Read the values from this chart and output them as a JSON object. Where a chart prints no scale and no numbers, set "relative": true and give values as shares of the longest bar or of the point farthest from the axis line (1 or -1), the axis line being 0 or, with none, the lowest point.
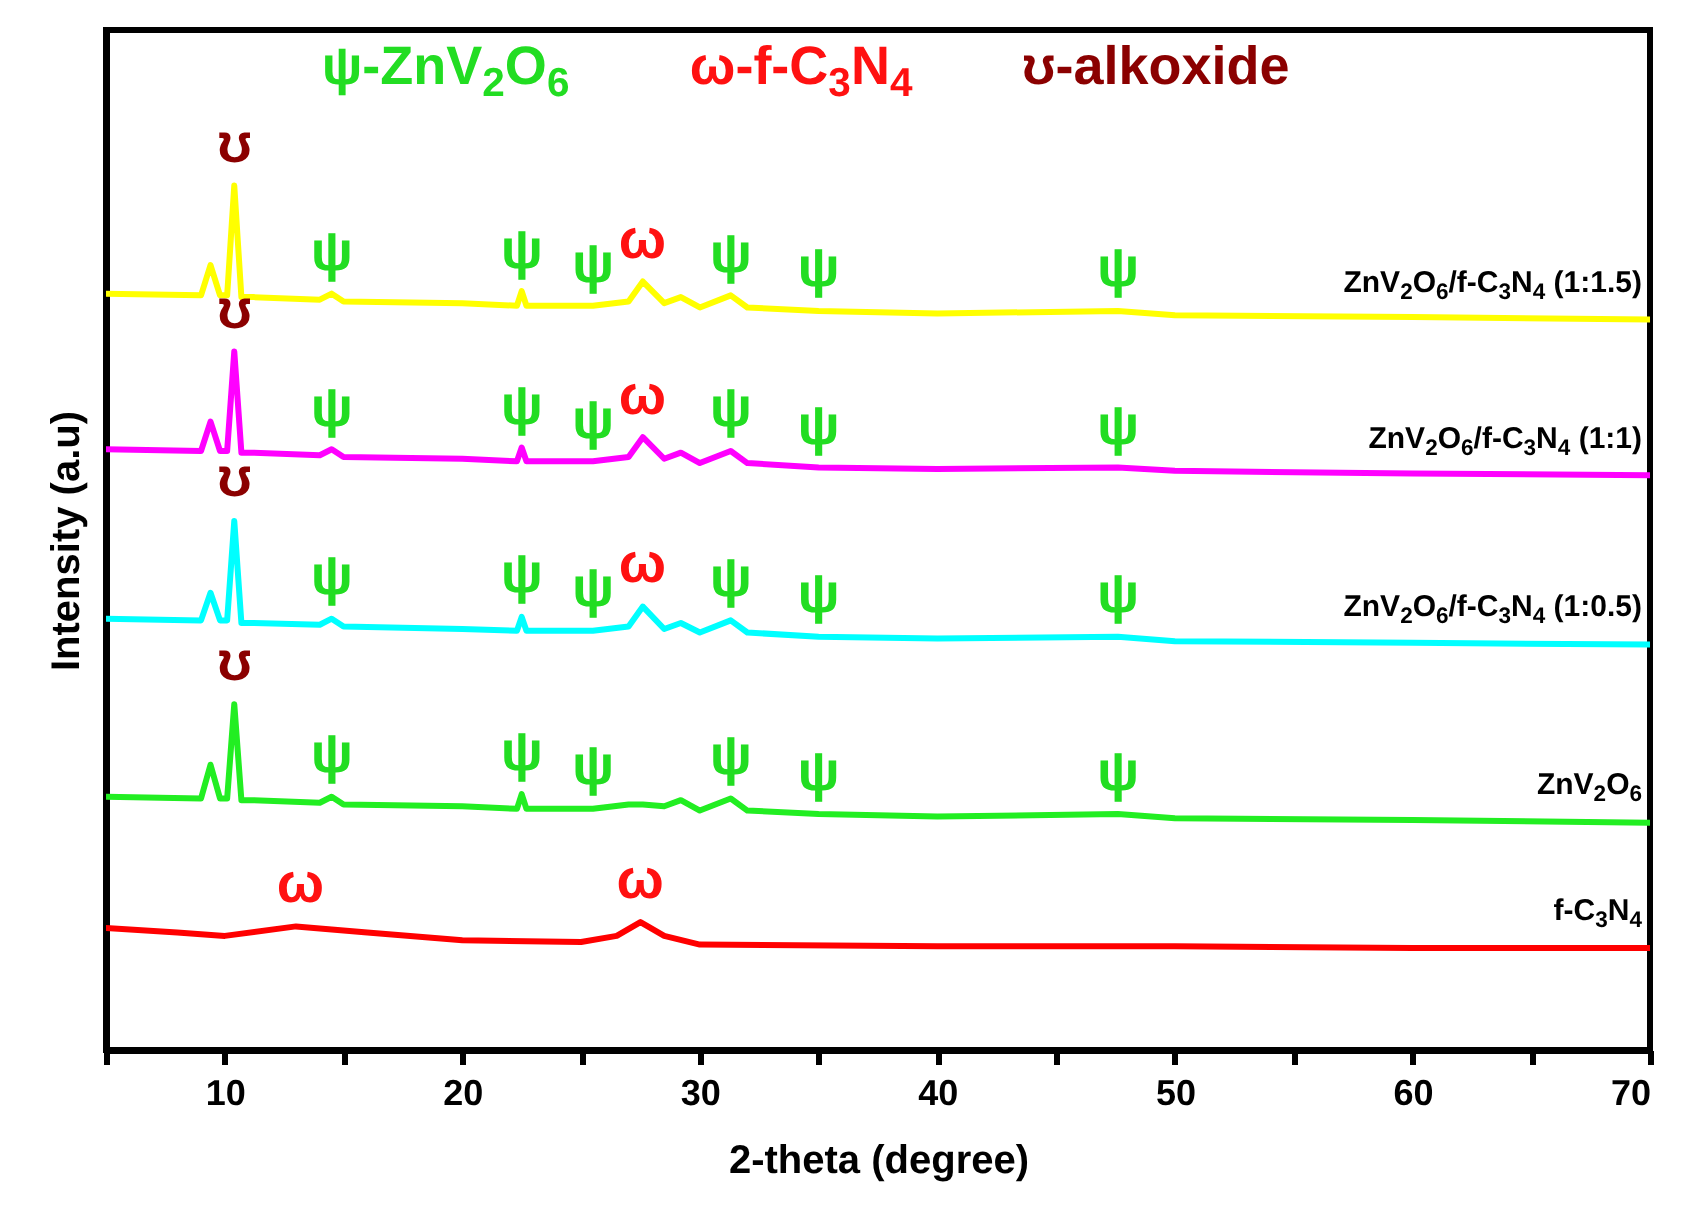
{
  "chart_data": {
    "type": "line",
    "relative": true,
    "xlabel": "2-theta (degree)",
    "ylabel": "Intensity (a.u)",
    "xlim": [
      5,
      70
    ],
    "xticks": [
      {
        "value": 5,
        "label": null
      },
      10,
      {
        "value": 15,
        "label": null
      },
      20,
      {
        "value": 25,
        "label": null
      },
      30,
      {
        "value": 35,
        "label": null
      },
      40,
      {
        "value": 45,
        "label": null
      },
      50,
      {
        "value": 55,
        "label": null
      },
      60,
      {
        "value": 65,
        "label": null
      },
      70
    ],
    "x": [
      5,
      9.0,
      9.4,
      9.8,
      10.1,
      10.4,
      10.7,
      11.2,
      14,
      14.5,
      15,
      20,
      22.3,
      22.5,
      22.7,
      25.5,
      27,
      27.6,
      28.5,
      29.2,
      30,
      31.3,
      32,
      35,
      40,
      47.6,
      50,
      60,
      70
    ],
    "series": [
      {
        "name": "ZnV$_{2}$O$_{6}$/f-C$_{3}$N$_{4}$ (1:1.5)",
        "color": "#ffff00",
        "values": [
          0.875,
          0.873,
          0.908,
          0.873,
          0.873,
          1.0,
          0.871,
          0.871,
          0.868,
          0.875,
          0.866,
          0.864,
          0.861,
          0.878,
          0.861,
          0.861,
          0.866,
          0.889,
          0.864,
          0.871,
          0.859,
          0.873,
          0.859,
          0.855,
          0.852,
          0.855,
          0.85,
          0.848,
          0.845
        ]
      },
      {
        "name": "ZnV$_{2}$O$_{6}$/f-C$_{3}$N$_{4}$ (1:1)",
        "color": "#ff00ff",
        "values": [
          0.695,
          0.693,
          0.727,
          0.693,
          0.693,
          0.808,
          0.691,
          0.691,
          0.688,
          0.695,
          0.686,
          0.684,
          0.681,
          0.697,
          0.681,
          0.681,
          0.686,
          0.709,
          0.684,
          0.691,
          0.679,
          0.693,
          0.679,
          0.674,
          0.672,
          0.674,
          0.67,
          0.667,
          0.665
        ]
      },
      {
        "name": "ZnV$_{2}$O$_{6}$/f-C$_{3}$N$_{4}$ (1:0.5)",
        "color": "#00ffff",
        "values": [
          0.499,
          0.497,
          0.529,
          0.497,
          0.497,
          0.612,
          0.494,
          0.494,
          0.492,
          0.499,
          0.49,
          0.487,
          0.485,
          0.501,
          0.485,
          0.485,
          0.49,
          0.513,
          0.487,
          0.494,
          0.483,
          0.497,
          0.483,
          0.478,
          0.476,
          0.478,
          0.473,
          0.471,
          0.469
        ]
      },
      {
        "name": "ZnV$_{2}$O$_{6}$",
        "color": "#22ee22",
        "values": [
          0.293,
          0.291,
          0.33,
          0.291,
          0.291,
          0.4,
          0.289,
          0.289,
          0.286,
          0.293,
          0.284,
          0.282,
          0.279,
          0.296,
          0.279,
          0.279,
          0.284,
          0.284,
          0.282,
          0.289,
          0.277,
          0.291,
          0.277,
          0.273,
          0.27,
          0.273,
          0.268,
          0.266,
          0.263
        ]
      },
      {
        "name": "f-C$_{3}$N$_{4}$",
        "color": "#ff0000",
        "x": [
          5,
          8,
          10,
          13,
          16,
          20,
          25,
          26.5,
          27.5,
          28.5,
          30,
          40,
          50,
          60,
          70
        ],
        "values": [
          0.141,
          0.136,
          0.132,
          0.143,
          0.136,
          0.127,
          0.125,
          0.132,
          0.148,
          0.132,
          0.122,
          0.12,
          0.12,
          0.118,
          0.118
        ]
      }
    ],
    "annotations": [
      "ψ-ZnV$_{2}$O$_{6}$",
      "ω-f-C$_{3}$N$_{4}$",
      "ʊ-alkoxide",
      {
        "text": "ʊ",
        "x": 10.4,
        "y": 1.0
      },
      {
        "text": "ψ",
        "x": 14.5,
        "y": 0.875
      },
      {
        "text": "ψ",
        "x": 22.5,
        "y": 0.878
      },
      {
        "text": "ψ",
        "x": 25.5,
        "y": 0.861
      },
      {
        "text": "ω",
        "x": 27.6,
        "y": 0.889
      },
      {
        "text": "ψ",
        "x": 31.3,
        "y": 0.873
      },
      {
        "text": "ψ",
        "x": 35,
        "y": 0.855
      },
      {
        "text": "ψ",
        "x": 47.6,
        "y": 0.855
      },
      {
        "text": "ʊ",
        "x": 10.4,
        "y": 0.808
      },
      {
        "text": "ψ",
        "x": 14.5,
        "y": 0.695
      },
      {
        "text": "ψ",
        "x": 22.5,
        "y": 0.697
      },
      {
        "text": "ψ",
        "x": 25.5,
        "y": 0.681
      },
      {
        "text": "ω",
        "x": 27.6,
        "y": 0.709
      },
      {
        "text": "ψ",
        "x": 31.3,
        "y": 0.693
      },
      {
        "text": "ψ",
        "x": 35,
        "y": 0.674
      },
      {
        "text": "ψ",
        "x": 47.6,
        "y": 0.674
      },
      {
        "text": "ʊ",
        "x": 10.4,
        "y": 0.612
      },
      {
        "text": "ψ",
        "x": 14.5,
        "y": 0.499
      },
      {
        "text": "ψ",
        "x": 22.5,
        "y": 0.501
      },
      {
        "text": "ψ",
        "x": 25.5,
        "y": 0.485
      },
      {
        "text": "ω",
        "x": 27.6,
        "y": 0.513
      },
      {
        "text": "ψ",
        "x": 31.3,
        "y": 0.497
      },
      {
        "text": "ψ",
        "x": 35,
        "y": 0.478
      },
      {
        "text": "ψ",
        "x": 47.6,
        "y": 0.478
      },
      {
        "text": "ʊ",
        "x": 10.4,
        "y": 0.4
      },
      {
        "text": "ψ",
        "x": 14.5,
        "y": 0.293
      },
      {
        "text": "ψ",
        "x": 22.5,
        "y": 0.296
      },
      {
        "text": "ψ",
        "x": 25.5,
        "y": 0.279
      },
      {
        "text": "ψ",
        "x": 31.3,
        "y": 0.291
      },
      {
        "text": "ψ",
        "x": 35,
        "y": 0.273
      },
      {
        "text": "ψ",
        "x": 47.6,
        "y": 0.273
      },
      {
        "text": "ω",
        "x": 13.2,
        "y": 0.143
      },
      {
        "text": "ω",
        "x": 27.5,
        "y": 0.148
      }
    ]
  }
}
